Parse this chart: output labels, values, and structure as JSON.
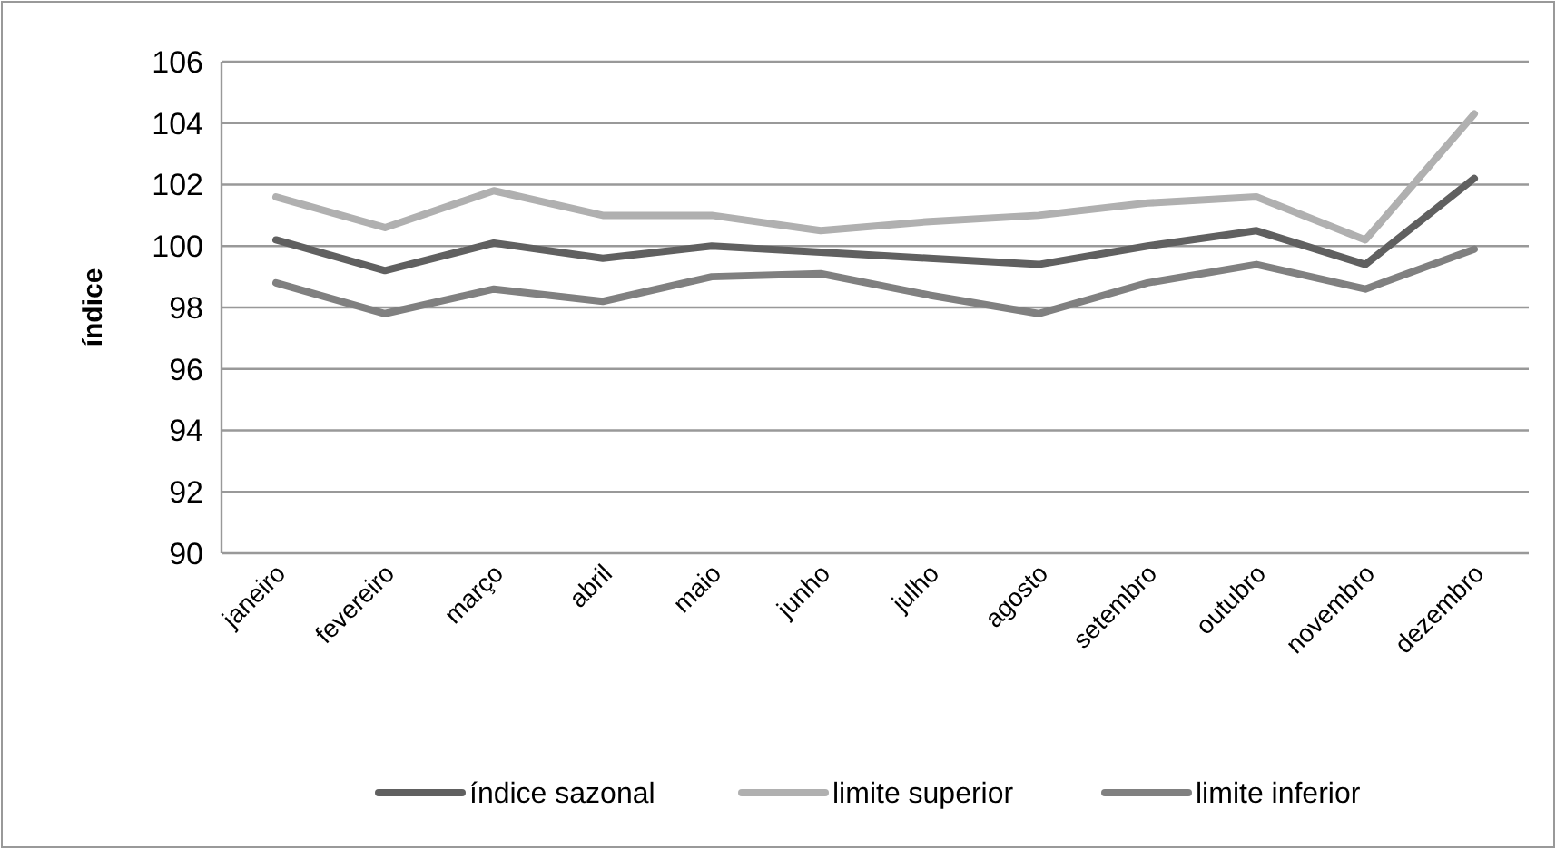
{
  "chart_data": {
    "type": "line",
    "ylabel": "índice",
    "categories": [
      "janeiro",
      "fevereiro",
      "março",
      "abril",
      "maio",
      "junho",
      "julho",
      "agosto",
      "setembro",
      "outubro",
      "novembro",
      "dezembro"
    ],
    "series": [
      {
        "name": "índice sazonal",
        "color": "#606060",
        "values": [
          100.2,
          99.2,
          100.1,
          99.6,
          100.0,
          99.8,
          99.6,
          99.4,
          100.0,
          100.5,
          99.4,
          102.2
        ]
      },
      {
        "name": "limite superior",
        "color": "#b0b0b0",
        "values": [
          101.6,
          100.6,
          101.8,
          101.0,
          101.0,
          100.5,
          100.8,
          101.0,
          101.4,
          101.6,
          100.2,
          104.3
        ]
      },
      {
        "name": "limite inferior",
        "color": "#808080",
        "values": [
          98.8,
          97.8,
          98.6,
          98.2,
          99.0,
          99.1,
          98.4,
          97.8,
          98.8,
          99.4,
          98.6,
          99.9
        ]
      }
    ],
    "ylim": [
      90,
      106
    ],
    "yticks": [
      90,
      92,
      94,
      96,
      98,
      100,
      102,
      104,
      106
    ],
    "grid": "y",
    "legend": "bottom",
    "line_style": "solid",
    "marker": "none"
  }
}
